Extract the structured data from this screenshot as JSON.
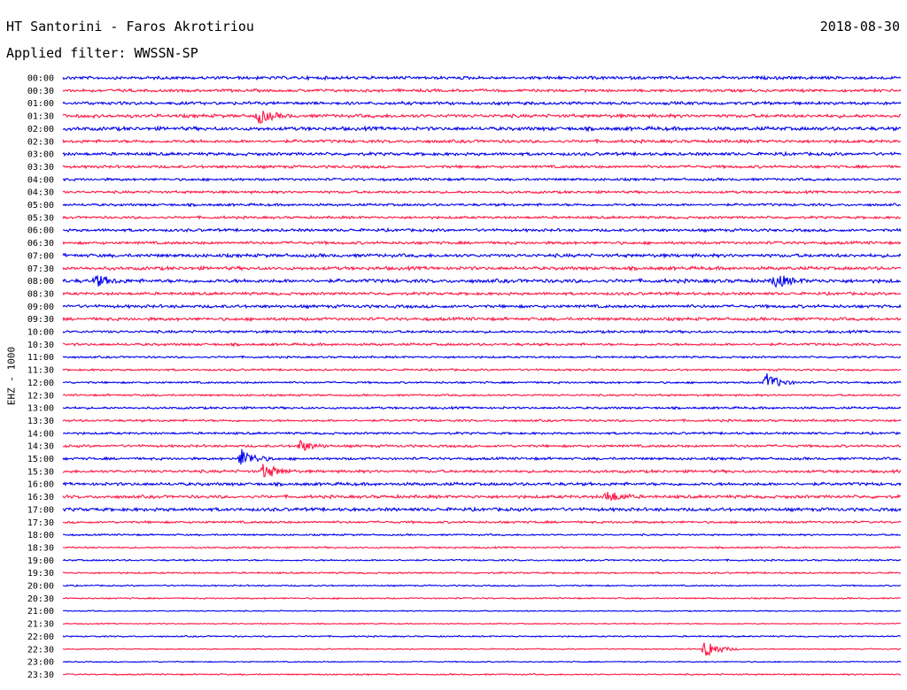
{
  "header": {
    "title": "HT Santorini - Faros Akrotiriou",
    "date": "2018-08-30",
    "filter": "Applied filter: WWSSN-SP"
  },
  "colors": {
    "even_trace": "#0000ee",
    "odd_trace": "#ff1744"
  },
  "chart_data": {
    "type": "line",
    "title": "HT Santorini - Faros Akrotiriou",
    "ylabel": "EHZ - 1000",
    "grid": false,
    "row_labels": [
      "00:00",
      "00:30",
      "01:00",
      "01:30",
      "02:00",
      "02:30",
      "03:00",
      "03:30",
      "04:00",
      "04:30",
      "05:00",
      "05:30",
      "06:00",
      "06:30",
      "07:00",
      "07:30",
      "08:00",
      "08:30",
      "09:00",
      "09:30",
      "10:00",
      "10:30",
      "11:00",
      "11:30",
      "12:00",
      "12:30",
      "13:00",
      "13:30",
      "14:00",
      "14:30",
      "15:00",
      "15:30",
      "16:00",
      "16:30",
      "17:00",
      "17:30",
      "18:00",
      "18:30",
      "19:00",
      "19:30",
      "20:00",
      "20:30",
      "21:00",
      "21:30",
      "22:00",
      "22:30",
      "23:00",
      "23:30"
    ],
    "noise_level": [
      0.55,
      0.5,
      0.55,
      0.6,
      0.65,
      0.55,
      0.55,
      0.5,
      0.45,
      0.45,
      0.45,
      0.45,
      0.5,
      0.5,
      0.6,
      0.6,
      0.65,
      0.5,
      0.55,
      0.55,
      0.45,
      0.45,
      0.35,
      0.35,
      0.35,
      0.35,
      0.4,
      0.4,
      0.4,
      0.45,
      0.45,
      0.5,
      0.55,
      0.55,
      0.6,
      0.4,
      0.3,
      0.3,
      0.3,
      0.3,
      0.25,
      0.25,
      0.2,
      0.2,
      0.25,
      0.2,
      0.2,
      0.25
    ],
    "events": [
      {
        "row": "01:30",
        "minute": 7.0,
        "amplitude": 2.4
      },
      {
        "row": "08:00",
        "minute": 1.2,
        "amplitude": 1.8
      },
      {
        "row": "08:00",
        "minute": 25.5,
        "amplitude": 2.4
      },
      {
        "row": "12:00",
        "minute": 25.2,
        "amplitude": 3.0
      },
      {
        "row": "14:30",
        "minute": 8.5,
        "amplitude": 1.8
      },
      {
        "row": "15:00",
        "minute": 6.4,
        "amplitude": 3.2
      },
      {
        "row": "15:30",
        "minute": 7.2,
        "amplitude": 2.6
      },
      {
        "row": "16:30",
        "minute": 19.5,
        "amplitude": 2.0
      },
      {
        "row": "22:30",
        "minute": 23.0,
        "amplitude": 3.4
      }
    ]
  }
}
